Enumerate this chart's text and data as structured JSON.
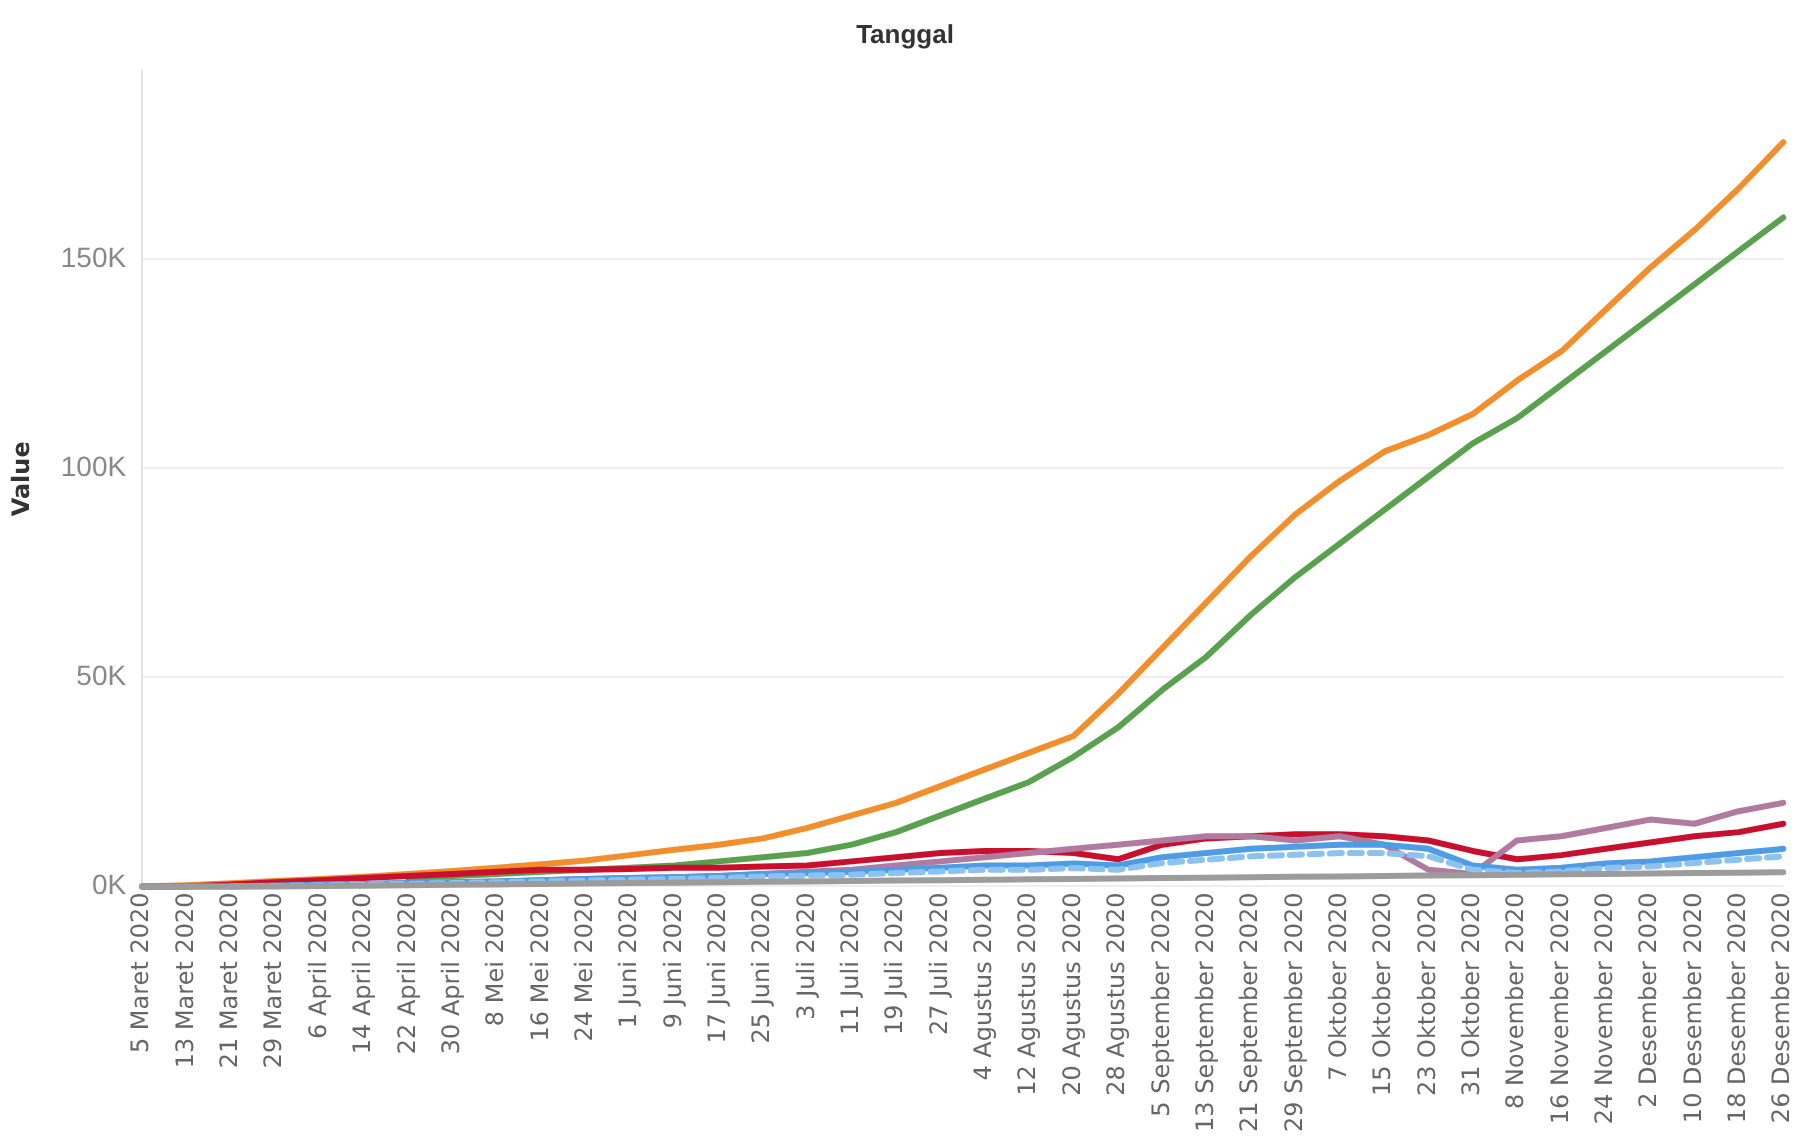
{
  "chart_data": {
    "type": "line",
    "title": "Tanggal",
    "ylabel": "Value",
    "categories": [
      "5 Maret 2020",
      "13 Maret 2020",
      "21 Maret 2020",
      "29 Maret 2020",
      "6 April 2020",
      "14 April 2020",
      "22 April 2020",
      "30 April 2020",
      "8 Mei 2020",
      "16 Mei 2020",
      "24 Mei 2020",
      "1 Juni 2020",
      "9 Juni 2020",
      "17 Juni 2020",
      "25 Juni 2020",
      "3 Juli 2020",
      "11 Juli 2020",
      "19 Juli 2020",
      "27 Juli 2020",
      "4 Agustus 2020",
      "12 Agustus 2020",
      "20 Agustus 2020",
      "28 Agustus 2020",
      "5 September 2020",
      "13 September 2020",
      "21 September 2020",
      "29 September 2020",
      "7 Oktober 2020",
      "15 Oktober 2020",
      "23 Oktober 2020",
      "31 Oktober 2020",
      "8 November 2020",
      "16 November 2020",
      "24 November 2020",
      "2 Desember 2020",
      "10 Desember 2020",
      "18 Desember 2020",
      "26 Desember 2020"
    ],
    "series": [
      {
        "color": "#9c9c9c",
        "values": [
          0,
          0,
          0,
          0,
          100,
          200,
          300,
          400,
          500,
          600,
          700,
          800,
          900,
          1000,
          1100,
          1200,
          1300,
          1400,
          1500,
          1600,
          1700,
          1800,
          1900,
          2000,
          2100,
          2200,
          2300,
          2400,
          2500,
          2600,
          2700,
          2800,
          2900,
          3000,
          3100,
          3200,
          3300,
          3400
        ]
      },
      {
        "color": "#8cc2f0",
        "line_style": "dashed",
        "values": [
          null,
          null,
          0,
          100,
          300,
          500,
          600,
          800,
          1000,
          1200,
          1400,
          1600,
          1800,
          2000,
          2400,
          2600,
          2800,
          3200,
          3600,
          4000,
          4000,
          4400,
          4000,
          5600,
          6400,
          7200,
          7600,
          8000,
          8000,
          7200,
          4000,
          3200,
          3600,
          4400,
          4800,
          5600,
          6400,
          7200
        ]
      },
      {
        "color": "#4e9be6",
        "values": [
          null,
          null,
          0,
          200,
          400,
          600,
          800,
          1000,
          1200,
          1500,
          1800,
          2000,
          2200,
          2500,
          3000,
          3200,
          3500,
          4000,
          4500,
          5000,
          5000,
          5500,
          5000,
          7000,
          8000,
          9000,
          9500,
          10000,
          10000,
          9000,
          5000,
          4000,
          4500,
          5500,
          6000,
          7000,
          8000,
          9000
        ]
      },
      {
        "color": "#b07aa1",
        "values": [
          0,
          0,
          0,
          200,
          400,
          600,
          800,
          1000,
          1200,
          1500,
          1800,
          2000,
          2200,
          2500,
          3000,
          3500,
          4000,
          5000,
          6000,
          7000,
          8000,
          9000,
          10000,
          11000,
          12000,
          12000,
          11000,
          12000,
          10000,
          4000,
          3000,
          11000,
          12000,
          14000,
          16000,
          15000,
          18000,
          20000
        ]
      },
      {
        "color": "#c8102e",
        "values": [
          0,
          0,
          500,
          1000,
          1500,
          2000,
          2500,
          3000,
          3500,
          4000,
          4000,
          4200,
          4500,
          4500,
          4800,
          5000,
          6000,
          7000,
          8000,
          8500,
          8500,
          8000,
          6500,
          10000,
          11500,
          12000,
          12500,
          12500,
          12000,
          11000,
          8500,
          6500,
          7500,
          9000,
          10500,
          12000,
          13000,
          15000
        ]
      },
      {
        "color": "#59a14f",
        "values": [
          null,
          null,
          null,
          null,
          null,
          null,
          2000,
          2500,
          3000,
          3500,
          4000,
          4500,
          5000,
          6000,
          7000,
          8000,
          10000,
          13000,
          17000,
          21000,
          25000,
          31000,
          38000,
          47000,
          55000,
          65000,
          74000,
          82000,
          90000,
          98000,
          106000,
          112000,
          120000,
          128000,
          136000,
          144000,
          152000,
          160000
        ]
      },
      {
        "color": "#f28e2b",
        "values": [
          0,
          300,
          800,
          1300,
          1800,
          2300,
          3000,
          3700,
          4500,
          5300,
          6200,
          7500,
          8800,
          10000,
          11500,
          14000,
          17000,
          20000,
          24000,
          28000,
          32000,
          36000,
          46000,
          57000,
          68000,
          79000,
          89000,
          97000,
          104000,
          108000,
          113000,
          121000,
          128000,
          138000,
          148000,
          157000,
          167000,
          178000
        ]
      }
    ],
    "ylim": [
      0,
      195000
    ],
    "yticks": [
      {
        "value": 0,
        "label": "0K"
      },
      {
        "value": 50000,
        "label": "50K"
      },
      {
        "value": 100000,
        "label": "100K"
      },
      {
        "value": 150000,
        "label": "150K"
      }
    ],
    "grid": "y",
    "legend": false,
    "marker": "none",
    "line_style": "solid"
  }
}
